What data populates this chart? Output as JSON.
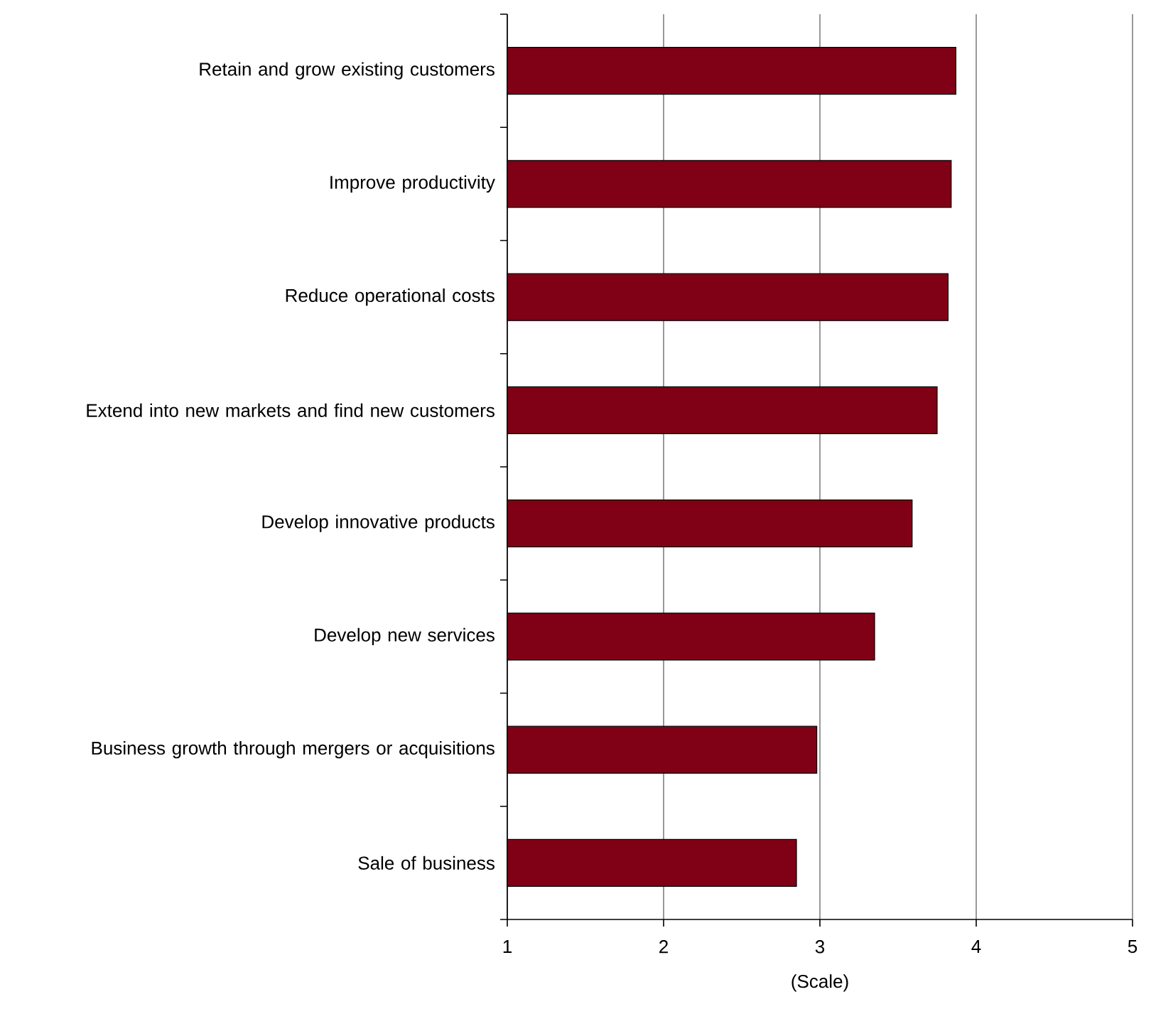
{
  "chart_data": {
    "type": "bar",
    "orientation": "horizontal",
    "xlabel": "(Scale)",
    "categories": [
      "Retain and grow existing customers",
      "Improve productivity",
      "Reduce operational costs",
      "Extend into new markets and find new customers",
      "Develop innovative products",
      "Develop new services",
      "Business growth through mergers or acquisitions",
      "Sale of business"
    ],
    "values": [
      3.87,
      3.84,
      3.82,
      3.75,
      3.59,
      3.35,
      2.98,
      2.85
    ],
    "color": "#800015",
    "xlim": [
      1,
      5
    ],
    "xticks": [
      1,
      2,
      3,
      4,
      5
    ],
    "grid": "x"
  }
}
